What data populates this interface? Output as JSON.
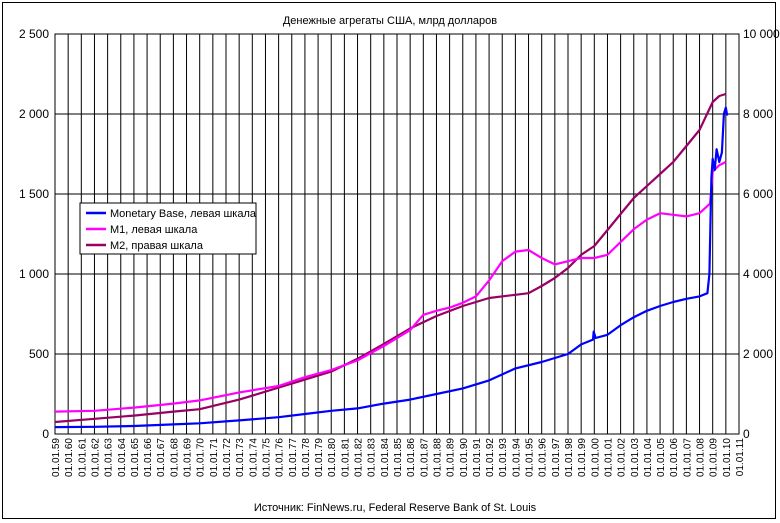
{
  "chart_data": {
    "type": "line",
    "title": "Денежные агрегаты США, млрд долларов",
    "source": "Источник: FinNews.ru, Federal Reserve Bank of St. Louis",
    "x_tick_labels": [
      "01.01.59",
      "01.01.60",
      "01.01.61",
      "01.01.62",
      "01.01.63",
      "01.01.64",
      "01.01.65",
      "01.01.66",
      "01.01.67",
      "01.01.68",
      "01.01.69",
      "01.01.70",
      "01.01.71",
      "01.01.72",
      "01.01.73",
      "01.01.74",
      "01.01.75",
      "01.01.76",
      "01.01.77",
      "01.01.78",
      "01.01.79",
      "01.01.80",
      "01.01.81",
      "01.01.82",
      "01.01.83",
      "01.01.84",
      "01.01.85",
      "01.01.86",
      "01.01.87",
      "01.01.88",
      "01.01.89",
      "01.01.90",
      "01.01.91",
      "01.01.92",
      "01.01.93",
      "01.01.94",
      "01.01.95",
      "01.01.96",
      "01.01.97",
      "01.01.98",
      "01.01.99",
      "01.01.00",
      "01.01.01",
      "01.01.02",
      "01.01.03",
      "01.01.04",
      "01.01.05",
      "01.01.06",
      "01.01.07",
      "01.01.08",
      "01.01.09",
      "01.01.10",
      "01.01.11"
    ],
    "x_range": [
      1959,
      2011
    ],
    "y_left": {
      "range": [
        0,
        2500
      ],
      "ticks": [
        "0",
        "500",
        "1 000",
        "1 500",
        "2 000",
        "2 500"
      ],
      "tick_values": [
        0,
        500,
        1000,
        1500,
        2000,
        2500
      ]
    },
    "y_right": {
      "range": [
        0,
        10000
      ],
      "ticks": [
        "0",
        "2 000",
        "4 000",
        "6 000",
        "8 000",
        "10 000"
      ],
      "tick_values": [
        0,
        2000,
        4000,
        6000,
        8000,
        10000
      ]
    },
    "grid": true,
    "legend_position": "left-middle",
    "series": [
      {
        "name": "Monetary Base, левая шкала",
        "axis": "left",
        "color": "#0000ff",
        "points": [
          [
            1959,
            43
          ],
          [
            1962,
            45
          ],
          [
            1965,
            50
          ],
          [
            1968,
            60
          ],
          [
            1970,
            67
          ],
          [
            1973,
            85
          ],
          [
            1976,
            105
          ],
          [
            1978,
            125
          ],
          [
            1980,
            145
          ],
          [
            1982,
            160
          ],
          [
            1984,
            190
          ],
          [
            1986,
            215
          ],
          [
            1988,
            250
          ],
          [
            1990,
            285
          ],
          [
            1992,
            335
          ],
          [
            1994,
            410
          ],
          [
            1996,
            450
          ],
          [
            1998,
            500
          ],
          [
            1999,
            560
          ],
          [
            1999.9,
            590
          ],
          [
            1999.95,
            640
          ],
          [
            2000.1,
            600
          ],
          [
            2001,
            620
          ],
          [
            2002,
            680
          ],
          [
            2003,
            730
          ],
          [
            2004,
            770
          ],
          [
            2005,
            800
          ],
          [
            2006,
            825
          ],
          [
            2007,
            845
          ],
          [
            2008,
            860
          ],
          [
            2008.6,
            880
          ],
          [
            2008.75,
            1000
          ],
          [
            2008.9,
            1600
          ],
          [
            2009.0,
            1720
          ],
          [
            2009.15,
            1650
          ],
          [
            2009.3,
            1780
          ],
          [
            2009.5,
            1700
          ],
          [
            2009.7,
            1760
          ],
          [
            2009.85,
            2000
          ],
          [
            2010.0,
            2040
          ],
          [
            2010.1,
            1990
          ]
        ]
      },
      {
        "name": "M1, левая шкала",
        "axis": "left",
        "color": "#ff00ff",
        "points": [
          [
            1959,
            140
          ],
          [
            1962,
            145
          ],
          [
            1965,
            165
          ],
          [
            1968,
            190
          ],
          [
            1970,
            210
          ],
          [
            1973,
            260
          ],
          [
            1976,
            300
          ],
          [
            1978,
            355
          ],
          [
            1980,
            400
          ],
          [
            1982,
            460
          ],
          [
            1984,
            550
          ],
          [
            1986,
            650
          ],
          [
            1987,
            745
          ],
          [
            1988,
            770
          ],
          [
            1989,
            790
          ],
          [
            1990,
            820
          ],
          [
            1991,
            860
          ],
          [
            1992,
            960
          ],
          [
            1993,
            1080
          ],
          [
            1994,
            1140
          ],
          [
            1995,
            1150
          ],
          [
            1996,
            1100
          ],
          [
            1997,
            1060
          ],
          [
            1998,
            1080
          ],
          [
            1999,
            1100
          ],
          [
            2000,
            1100
          ],
          [
            2001,
            1120
          ],
          [
            2002,
            1200
          ],
          [
            2003,
            1280
          ],
          [
            2004,
            1340
          ],
          [
            2005,
            1380
          ],
          [
            2006,
            1370
          ],
          [
            2007,
            1360
          ],
          [
            2008,
            1380
          ],
          [
            2008.8,
            1440
          ],
          [
            2009,
            1640
          ],
          [
            2009.5,
            1680
          ],
          [
            2010,
            1700
          ]
        ]
      },
      {
        "name": "M2, правая шкала",
        "axis": "right",
        "color": "#990066",
        "points": [
          [
            1959,
            300
          ],
          [
            1962,
            380
          ],
          [
            1965,
            460
          ],
          [
            1968,
            560
          ],
          [
            1970,
            620
          ],
          [
            1973,
            860
          ],
          [
            1976,
            1160
          ],
          [
            1978,
            1360
          ],
          [
            1980,
            1560
          ],
          [
            1982,
            1880
          ],
          [
            1984,
            2250
          ],
          [
            1986,
            2640
          ],
          [
            1988,
            2950
          ],
          [
            1990,
            3200
          ],
          [
            1992,
            3400
          ],
          [
            1994,
            3480
          ],
          [
            1995,
            3520
          ],
          [
            1996,
            3700
          ],
          [
            1997,
            3900
          ],
          [
            1998,
            4150
          ],
          [
            1999,
            4480
          ],
          [
            2000,
            4700
          ],
          [
            2001,
            5100
          ],
          [
            2002,
            5500
          ],
          [
            2003,
            5900
          ],
          [
            2004,
            6200
          ],
          [
            2005,
            6500
          ],
          [
            2006,
            6800
          ],
          [
            2007,
            7200
          ],
          [
            2008,
            7600
          ],
          [
            2009,
            8300
          ],
          [
            2009.5,
            8450
          ],
          [
            2010,
            8500
          ]
        ]
      }
    ]
  }
}
